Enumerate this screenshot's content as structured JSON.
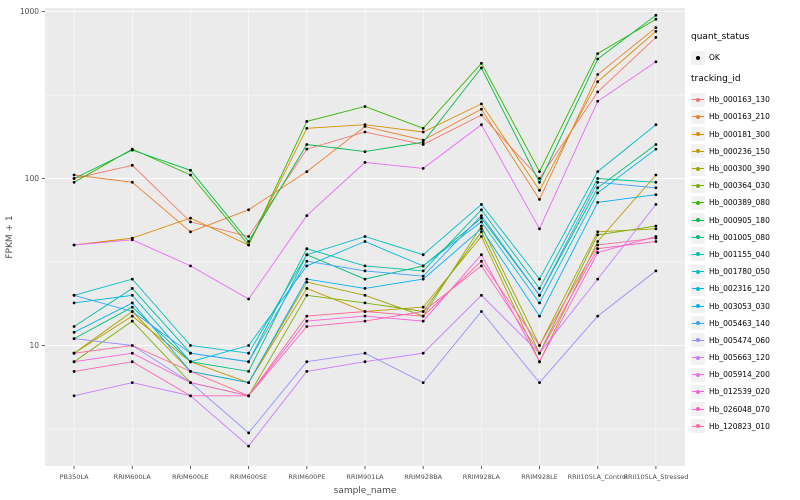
{
  "chart_data": {
    "type": "line",
    "xlabel": "sample_name",
    "ylabel": "FPKM + 1",
    "y_scale": "log10",
    "y_range": [
      1.9,
      1050
    ],
    "y_ticks": [
      10,
      100,
      1000
    ],
    "y_minor_ticks": [
      3.162,
      31.62,
      316.2
    ],
    "grid": true,
    "panel_bg": "#EBEBEB",
    "grid_color": "#FFFFFF",
    "point_color": "#000000",
    "x_categories": [
      "PB350LA",
      "RRIM600LA",
      "RRIM600LE",
      "RRIM600SE",
      "RRIM600PE",
      "RRIM901LA",
      "RRIM928BA",
      "RRIM928LA",
      "RRIM928LE",
      "RRII105LA_Control",
      "RRII105LA_Stressed"
    ],
    "legend": {
      "position": "right",
      "quant_status_title": "quant_status",
      "quant_status_items": [
        "OK"
      ],
      "tracking_id_title": "tracking_id"
    },
    "series": [
      {
        "name": "Hb_000163_130",
        "color": "#F8766D",
        "values": [
          100,
          120,
          55,
          45,
          150,
          190,
          160,
          240,
          100,
          330,
          700
        ]
      },
      {
        "name": "Hb_000163_210",
        "color": "#EA8331",
        "values": [
          105,
          95,
          48,
          65,
          110,
          205,
          170,
          260,
          75,
          420,
          800
        ]
      },
      {
        "name": "Hb_000181_300",
        "color": "#D89000",
        "values": [
          40,
          44,
          58,
          40,
          200,
          210,
          190,
          280,
          85,
          380,
          760
        ]
      },
      {
        "name": "Hb_000236_150",
        "color": "#C09B00",
        "values": [
          9,
          15,
          8,
          6,
          22,
          16,
          17,
          45,
          8,
          42,
          105
        ]
      },
      {
        "name": "Hb_000300_390",
        "color": "#A3A500",
        "values": [
          9,
          16,
          7,
          6,
          24,
          20,
          15,
          52,
          10,
          48,
          50
        ]
      },
      {
        "name": "Hb_000364_030",
        "color": "#7CAE00",
        "values": [
          8,
          14,
          6,
          5,
          20,
          18,
          16,
          48,
          9,
          46,
          52
        ]
      },
      {
        "name": "Hb_000389_080",
        "color": "#39B600",
        "values": [
          95,
          150,
          105,
          40,
          220,
          270,
          200,
          490,
          110,
          560,
          900
        ]
      },
      {
        "name": "Hb_000905_180",
        "color": "#00BB4E",
        "values": [
          100,
          148,
          112,
          42,
          160,
          145,
          165,
          460,
          95,
          520,
          950
        ]
      },
      {
        "name": "Hb_001005_080",
        "color": "#00BF7D",
        "values": [
          11,
          17,
          8,
          7,
          35,
          25,
          30,
          58,
          20,
          88,
          160
        ]
      },
      {
        "name": "Hb_001155_040",
        "color": "#00C1A3",
        "values": [
          13,
          22,
          9,
          8,
          38,
          30,
          28,
          65,
          22,
          100,
          95
        ]
      },
      {
        "name": "Hb_001780_050",
        "color": "#00BFC4",
        "values": [
          20,
          25,
          10,
          9,
          35,
          45,
          35,
          70,
          25,
          110,
          210
        ]
      },
      {
        "name": "Hb_002316_120",
        "color": "#00BAE0",
        "values": [
          18,
          20,
          8,
          10,
          30,
          42,
          30,
          55,
          18,
          82,
          150
        ]
      },
      {
        "name": "Hb_003053_030",
        "color": "#00B0F6",
        "values": [
          12,
          18,
          7,
          6,
          25,
          22,
          25,
          50,
          15,
          72,
          80
        ]
      },
      {
        "name": "Hb_005463_140",
        "color": "#35A2FF",
        "values": [
          20,
          16,
          9,
          8,
          32,
          28,
          26,
          60,
          20,
          95,
          88
        ]
      },
      {
        "name": "Hb_005474_060",
        "color": "#9590FF",
        "values": [
          11,
          10,
          6,
          3,
          8,
          9,
          6,
          16,
          6,
          15,
          28
        ]
      },
      {
        "name": "Hb_005663_120",
        "color": "#C77CFF",
        "values": [
          5,
          6,
          5,
          2.5,
          7,
          8,
          9,
          20,
          9,
          25,
          70
        ]
      },
      {
        "name": "Hb_005914_200",
        "color": "#E76BF3",
        "values": [
          40,
          43,
          30,
          19,
          60,
          125,
          115,
          210,
          50,
          290,
          500
        ]
      },
      {
        "name": "Hb_012539_020",
        "color": "#FA62DB",
        "values": [
          8,
          9,
          6,
          5,
          14,
          15,
          14,
          35,
          8,
          36,
          45
        ]
      },
      {
        "name": "Hb_026048_070",
        "color": "#FF62BC",
        "values": [
          7,
          8,
          5,
          5,
          13,
          14,
          16,
          30,
          9,
          38,
          42
        ]
      },
      {
        "name": "Hb_120823_010",
        "color": "#FF6A98",
        "values": [
          9,
          10,
          7,
          5,
          15,
          16,
          15,
          32,
          10,
          40,
          44
        ]
      }
    ]
  }
}
